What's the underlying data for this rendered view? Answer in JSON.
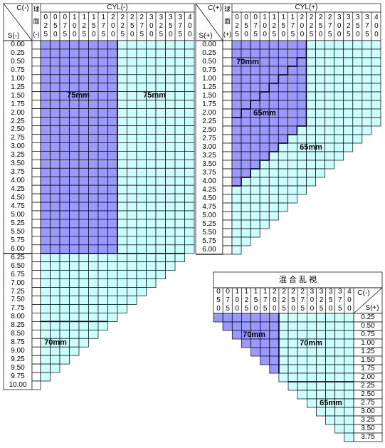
{
  "tables": [
    {
      "corner_top": "C(-)",
      "corner_bottom": "S(-)",
      "header": "CYL(-)",
      "sphere": [
        "球",
        "面",
        "(-)"
      ],
      "columns": [
        "025",
        "050",
        "075",
        "100",
        "125",
        "150",
        "175",
        "200",
        "225",
        "250",
        "275",
        "300",
        "325",
        "350",
        "375",
        "400"
      ],
      "rows": [
        "0.00",
        "0.25",
        "0.50",
        "0.75",
        "1.00",
        "1.25",
        "1.50",
        "1.75",
        "2.00",
        "2.25",
        "2.50",
        "2.75",
        "3.00",
        "3.25",
        "3.50",
        "3.75",
        "4.00",
        "4.25",
        "4.50",
        "4.75",
        "5.00",
        "5.25",
        "5.50",
        "5.75",
        "6.00",
        "6.25",
        "6.50",
        "6.75",
        "7.00",
        "7.25",
        "7.50",
        "7.75",
        "8.00",
        "8.25",
        "8.50",
        "8.75",
        "9.00",
        "9.25",
        "9.50",
        "9.75",
        "10.00"
      ],
      "labels": [
        "75mm",
        "75mm",
        "70mm"
      ]
    },
    {
      "corner_top": "C(+)",
      "corner_bottom": "S(+)",
      "header": "CYL(+)",
      "sphere": [
        "球",
        "面",
        "(+)"
      ],
      "columns": [
        "025",
        "050",
        "075",
        "100",
        "125",
        "150",
        "175",
        "200",
        "225",
        "250",
        "275",
        "300",
        "325",
        "350",
        "375",
        "400"
      ],
      "rows": [
        "0.00",
        "0.25",
        "0.50",
        "0.75",
        "1.00",
        "1.25",
        "1.50",
        "1.75",
        "2.00",
        "2.25",
        "2.50",
        "2.75",
        "3.00",
        "3.25",
        "3.50",
        "3.75",
        "4.00",
        "4.25",
        "4.50",
        "4.75",
        "5.00",
        "5.25",
        "5.50",
        "5.75",
        "6.00"
      ],
      "labels": [
        "70mm",
        "65mm",
        "65mm"
      ]
    },
    {
      "title": "混 合 乱 視",
      "corner_top": "C(-)",
      "corner_bottom": "S(+)",
      "columns": [
        "050",
        "075",
        "100",
        "125",
        "150",
        "175",
        "200",
        "225",
        "250",
        "275",
        "300",
        "325",
        "350",
        "375",
        "400"
      ],
      "rows": [
        "0.25",
        "0.50",
        "0.75",
        "1.00",
        "1.25",
        "1.50",
        "1.75",
        "2.00",
        "2.25",
        "2.50",
        "2.75",
        "3.00",
        "3.25",
        "3.50",
        "3.75"
      ],
      "labels": [
        "70mm",
        "70mm",
        "65mm"
      ]
    }
  ]
}
